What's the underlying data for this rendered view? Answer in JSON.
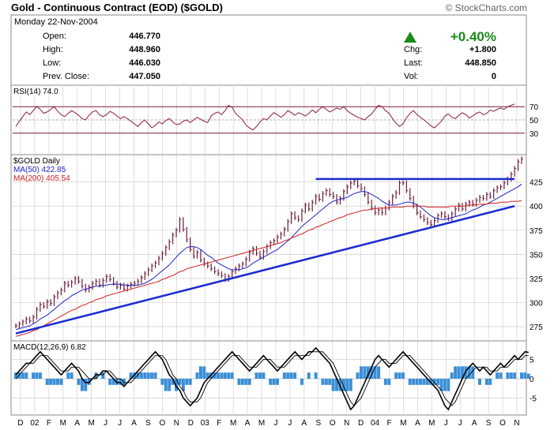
{
  "header": {
    "title": "Gold - Continuous Contract (EOD) ($GOLD)",
    "copyright": "© StockCharts.com",
    "date": "Monday  22-Nov-2004"
  },
  "quote": {
    "open_label": "Open:",
    "open": "446.770",
    "high_label": "High:",
    "high": "448.960",
    "low_label": "Low:",
    "low": "446.030",
    "prev_label": "Prev. Close:",
    "prev": "447.050",
    "pct_change": "+0.40%",
    "chg_label": "Chg:",
    "chg": "+1.800",
    "last_label": "Last:",
    "last": "448.850",
    "vol_label": "Vol:",
    "vol": "0",
    "up_color": "#1a8a1a"
  },
  "chart_data": [
    {
      "type": "line",
      "panel": "rsi",
      "label": "RSI(14) 74.0",
      "ylim": [
        0,
        100
      ],
      "yticks": [
        70,
        50,
        30
      ],
      "series": [
        {
          "name": "RSI(14)",
          "values": [
            40,
            48,
            55,
            62,
            58,
            64,
            70,
            66,
            60,
            62,
            66,
            70,
            63,
            58,
            55,
            60,
            64,
            61,
            57,
            52,
            50,
            57,
            62,
            64,
            58,
            55,
            58,
            63,
            60,
            56,
            52,
            55,
            52,
            48,
            44,
            40,
            46,
            50,
            44,
            38,
            42,
            47,
            44,
            49,
            52,
            47,
            43,
            44,
            48,
            50,
            46,
            50,
            54,
            51,
            48,
            46,
            56,
            60,
            62,
            58,
            64,
            72,
            69,
            60,
            55,
            50,
            42,
            38,
            35,
            40,
            47,
            52,
            50,
            56,
            61,
            58,
            54,
            58,
            64,
            61,
            57,
            61,
            59,
            56,
            60,
            65,
            61,
            66,
            70,
            66,
            62,
            65,
            68,
            66,
            70,
            64,
            60,
            57,
            54,
            52,
            50,
            55,
            59,
            66,
            72,
            70,
            64,
            60,
            52,
            45,
            40,
            44,
            53,
            60,
            64,
            58,
            54,
            50,
            46,
            41,
            38,
            43,
            48,
            56,
            59,
            54,
            52,
            57,
            61,
            58,
            53,
            56,
            60,
            62,
            58,
            60,
            65,
            63,
            66,
            68,
            66,
            70,
            72,
            74
          ]
        }
      ]
    },
    {
      "type": "line",
      "panel": "price",
      "title": "$GOLD Daily",
      "x_labels": [
        "D",
        "02",
        "F",
        "M",
        "A",
        "M",
        "J",
        "J",
        "A",
        "S",
        "O",
        "N",
        "D",
        "03",
        "F",
        "M",
        "A",
        "M",
        "J",
        "J",
        "A",
        "S",
        "O",
        "N",
        "D",
        "04",
        "F",
        "M",
        "A",
        "M",
        "J",
        "J",
        "A",
        "S",
        "O",
        "N"
      ],
      "ylim": [
        262,
        450
      ],
      "yticks": [
        425,
        400,
        375,
        350,
        325,
        300,
        275
      ],
      "series": [
        {
          "name": "$GOLD",
          "values": [
            276,
            278,
            280,
            283,
            281,
            285,
            293,
            298,
            296,
            301,
            299,
            306,
            310,
            313,
            320,
            318,
            321,
            325,
            322,
            317,
            313,
            316,
            320,
            322,
            318,
            323,
            327,
            324,
            320,
            316,
            318,
            314,
            317,
            319,
            320,
            322,
            326,
            330,
            334,
            338,
            341,
            346,
            351,
            357,
            363,
            370,
            375,
            386,
            376,
            365,
            355,
            348,
            352,
            344,
            340,
            338,
            335,
            332,
            330,
            328,
            324,
            327,
            332,
            335,
            338,
            340,
            345,
            352,
            356,
            351,
            347,
            353,
            358,
            362,
            364,
            368,
            371,
            376,
            384,
            392,
            388,
            386,
            395,
            401,
            397,
            404,
            410,
            407,
            413,
            416,
            412,
            410,
            404,
            408,
            415,
            420,
            424,
            426,
            421,
            418,
            412,
            404,
            398,
            393,
            396,
            393,
            398,
            404,
            410,
            414,
            424,
            424,
            416,
            408,
            400,
            393,
            389,
            386,
            383,
            381,
            385,
            390,
            392,
            389,
            387,
            392,
            397,
            401,
            397,
            402,
            404,
            402,
            406,
            409,
            408,
            412,
            410,
            416,
            419,
            420,
            424,
            428,
            433,
            439,
            446,
            448.85
          ]
        },
        {
          "name": "MA(50) 422.85",
          "values": [
            272,
            273,
            274,
            275,
            276,
            278,
            280,
            283,
            285,
            287,
            290,
            293,
            296,
            299,
            302,
            304,
            307,
            309,
            311,
            313,
            314,
            315,
            316,
            317,
            317,
            318,
            318,
            319,
            319,
            319,
            319,
            318,
            318,
            318,
            318,
            318,
            319,
            320,
            322,
            324,
            327,
            330,
            333,
            336,
            339,
            343,
            347,
            351,
            354,
            357,
            358,
            358,
            357,
            355,
            352,
            349,
            347,
            344,
            341,
            339,
            337,
            335,
            334,
            334,
            334,
            335,
            336,
            338,
            341,
            343,
            345,
            347,
            349,
            351,
            353,
            355,
            358,
            361,
            364,
            367,
            371,
            375,
            379,
            382,
            385,
            388,
            391,
            394,
            397,
            400,
            403,
            405,
            406,
            407,
            408,
            409,
            411,
            413,
            414,
            415,
            415,
            414,
            412,
            410,
            408,
            405,
            403,
            401,
            401,
            401,
            402,
            403,
            404,
            404,
            403,
            401,
            399,
            396,
            393,
            390,
            388,
            387,
            386,
            386,
            387,
            388,
            389,
            390,
            391,
            392,
            394,
            396,
            397,
            399,
            401,
            402,
            404,
            406,
            408,
            410,
            412,
            414,
            416,
            418,
            420,
            422.85
          ]
        },
        {
          "name": "MA(200) 405.54",
          "values": [
            265,
            266,
            267,
            268,
            269,
            271,
            272,
            274,
            276,
            278,
            280,
            282,
            284,
            286,
            288,
            290,
            292,
            293,
            295,
            297,
            298,
            300,
            301,
            303,
            304,
            305,
            307,
            308,
            309,
            310,
            311,
            312,
            313,
            314,
            315,
            316,
            317,
            318,
            319,
            320,
            321,
            322,
            324,
            325,
            327,
            328,
            330,
            332,
            333,
            335,
            336,
            337,
            338,
            339,
            340,
            341,
            342,
            343,
            344,
            345,
            346,
            347,
            348,
            349,
            350,
            351,
            352,
            353,
            354,
            355,
            356,
            357,
            358,
            359,
            360,
            361,
            362,
            364,
            365,
            367,
            368,
            370,
            371,
            373,
            375,
            376,
            378,
            379,
            381,
            382,
            384,
            385,
            387,
            388,
            389,
            391,
            392,
            393,
            394,
            395,
            396,
            396,
            397,
            397,
            398,
            398,
            398,
            398,
            399,
            399,
            399,
            399,
            400,
            400,
            400,
            400,
            400,
            400,
            399,
            399,
            399,
            399,
            399,
            399,
            399,
            400,
            400,
            400,
            400,
            400,
            401,
            401,
            401,
            402,
            402,
            402,
            403,
            403,
            403,
            404,
            404,
            404,
            405,
            405,
            405,
            405.54
          ]
        }
      ],
      "annotations": [
        {
          "kind": "trendline",
          "from": [
            0,
            268
          ],
          "to": [
            143,
            400
          ]
        },
        {
          "kind": "resistance",
          "from": [
            86,
            428
          ],
          "to": [
            143,
            428
          ]
        }
      ]
    },
    {
      "type": "line",
      "panel": "macd",
      "label": "MACD(12,26,9) 6.82",
      "ylim": [
        -9,
        9
      ],
      "yticks": [
        5,
        0,
        -5
      ],
      "series": [
        {
          "name": "MACD",
          "values": [
            1,
            2,
            3,
            4,
            4,
            5,
            6,
            7,
            6,
            5,
            4,
            3,
            2,
            1,
            2,
            3,
            4,
            3,
            2,
            0,
            -1,
            -1,
            0,
            1,
            1,
            2,
            2,
            1,
            0,
            -1,
            -1,
            -2,
            -1,
            0,
            1,
            2,
            3,
            4,
            5,
            6,
            7,
            6,
            5,
            3,
            1,
            0,
            -2,
            -3,
            -5,
            -6,
            -7,
            -6,
            -5,
            -3,
            -1,
            0,
            1,
            2,
            3,
            4,
            5,
            6,
            7,
            6,
            5,
            4,
            3,
            2,
            3,
            4,
            5,
            6,
            5,
            4,
            3,
            2,
            3,
            4,
            5,
            6,
            7,
            6,
            5,
            6,
            7,
            7,
            8,
            7,
            6,
            5,
            4,
            2,
            0,
            -2,
            -4,
            -6,
            -8,
            -7,
            -5,
            -3,
            -1,
            1,
            3,
            5,
            6,
            5,
            4,
            3,
            4,
            5,
            6,
            7,
            6,
            5,
            4,
            3,
            2,
            1,
            0,
            -1,
            -2,
            -3,
            -5,
            -7,
            -8,
            -6,
            -4,
            -2,
            0,
            2,
            3,
            4,
            3,
            2,
            3,
            2,
            1,
            2,
            3,
            4,
            3,
            4,
            5,
            6,
            5,
            6,
            7,
            6.82
          ]
        },
        {
          "name": "Signal",
          "values": [
            0,
            1,
            2,
            3,
            4,
            4,
            5,
            6,
            6,
            6,
            5,
            4,
            3,
            2,
            2,
            2,
            3,
            3,
            3,
            2,
            1,
            0,
            0,
            0,
            1,
            1,
            2,
            2,
            1,
            0,
            0,
            -1,
            -1,
            -1,
            0,
            1,
            2,
            3,
            4,
            5,
            6,
            6,
            6,
            5,
            3,
            1,
            0,
            -2,
            -3,
            -5,
            -6,
            -6,
            -6,
            -5,
            -3,
            -1,
            0,
            1,
            2,
            3,
            4,
            5,
            6,
            6,
            6,
            5,
            4,
            3,
            3,
            3,
            4,
            5,
            5,
            5,
            4,
            3,
            3,
            3,
            4,
            5,
            6,
            6,
            6,
            6,
            6,
            7,
            7,
            7,
            7,
            6,
            5,
            4,
            2,
            0,
            -2,
            -4,
            -6,
            -7,
            -6,
            -5,
            -3,
            -1,
            1,
            3,
            4,
            5,
            5,
            4,
            4,
            4,
            5,
            6,
            6,
            6,
            5,
            4,
            3,
            2,
            1,
            0,
            -1,
            -2,
            -3,
            -5,
            -6,
            -7,
            -6,
            -4,
            -2,
            0,
            1,
            2,
            3,
            3,
            3,
            3,
            2,
            2,
            2,
            3,
            3,
            3,
            4,
            5,
            5,
            5,
            6,
            6
          ]
        }
      ]
    }
  ],
  "colors": {
    "bar": "#6b1d3a",
    "ma50": "#2323c8",
    "ma200": "#d02020",
    "trend": "#1a2bd0",
    "rsi": "#8c1c40",
    "rsi_band": "#7a1a2a",
    "grid": "#c8c8c8",
    "hist": "#3b8fd6",
    "macd": "#000000"
  }
}
